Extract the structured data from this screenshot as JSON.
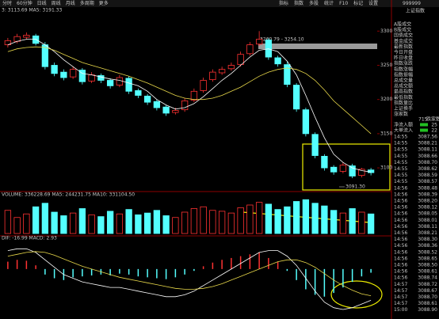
{
  "toolbar": {
    "left": [
      "分时",
      "60分钟",
      "日线",
      "周线",
      "月线",
      "多周期",
      "更多"
    ],
    "right": [
      "指标",
      "指数",
      "多股",
      "统计",
      "F10",
      "标记",
      "设置"
    ]
  },
  "side_panel": {
    "title": "上证指数",
    "code": "999999",
    "items": [
      "A股成交",
      "B股成交",
      "国债成交",
      "基金成交",
      "最新指数",
      "今日开盘",
      "昨日收盘",
      "指数涨跌",
      "指数涨幅",
      "指数振幅",
      "总成交量",
      "总成交额",
      "最高指数",
      "最低指数",
      "指数量比",
      "上证换手",
      "涨家数"
    ],
    "breadth": {
      "up": "715",
      "label": "跌家数"
    },
    "flows": [
      [
        "净流入额",
        "25"
      ],
      [
        "大单流入",
        "22"
      ]
    ],
    "ticks": [
      [
        "14:55",
        "3087.56"
      ],
      [
        "14:55",
        "3088.21"
      ],
      [
        "14:55",
        "3088.11"
      ],
      [
        "14:55",
        "3088.66"
      ],
      [
        "14:55",
        "3088.70"
      ],
      [
        "14:55",
        "3088.62"
      ],
      [
        "14:55",
        "3088.59"
      ],
      [
        "14:55",
        "3088.57"
      ],
      [
        "14:56",
        "3088.48"
      ],
      [
        "14:56",
        "3088.39"
      ],
      [
        "14:56",
        "3088.20"
      ],
      [
        "14:56",
        "3088.12"
      ],
      [
        "14:56",
        "3088.05"
      ],
      [
        "14:56",
        "3088.01"
      ],
      [
        "14:56",
        "3088.11"
      ],
      [
        "14:56",
        "3088.21"
      ],
      [
        "14:56",
        "3088.30"
      ],
      [
        "14:56",
        "3088.36"
      ],
      [
        "14:56",
        "3088.52"
      ],
      [
        "14:56",
        "3088.65"
      ],
      [
        "14:56",
        "3088.50"
      ],
      [
        "14:56",
        "3088.61"
      ],
      [
        "14:56",
        "3088.74"
      ],
      [
        "14:57",
        "3088.72"
      ],
      [
        "14:57",
        "3088.67"
      ],
      [
        "14:57",
        "3088.70"
      ],
      [
        "14:57",
        "3088.61"
      ],
      [
        "15:00",
        "3088.90"
      ]
    ]
  },
  "chart_data": [
    {
      "type": "candlestick",
      "header": "3: 3113.69  MA5: 3191.33",
      "up_color": "#ff3232",
      "down_color": "#54ffff",
      "open": [
        3280,
        3285,
        3291,
        3293,
        3280,
        3250,
        3240,
        3233,
        3243,
        3227,
        3235,
        3228,
        3221,
        3231,
        3213,
        3205,
        3197,
        3189,
        3181,
        3185,
        3199,
        3213,
        3229,
        3239,
        3245,
        3251,
        3267,
        3281,
        3287,
        3261,
        3251,
        3221,
        3185,
        3149,
        3117,
        3101,
        3095,
        3103,
        3089,
        3097
      ],
      "high": [
        3290,
        3296,
        3298,
        3296,
        3284,
        3254,
        3244,
        3248,
        3246,
        3240,
        3238,
        3231,
        3236,
        3234,
        3216,
        3208,
        3200,
        3192,
        3188,
        3202,
        3216,
        3232,
        3244,
        3248,
        3254,
        3270,
        3284,
        3300,
        3290,
        3264,
        3255,
        3224,
        3188,
        3152,
        3120,
        3104,
        3108,
        3106,
        3100,
        3100
      ],
      "low": [
        3276,
        3282,
        3288,
        3279,
        3244,
        3234,
        3228,
        3230,
        3222,
        3224,
        3224,
        3216,
        3218,
        3208,
        3202,
        3192,
        3184,
        3176,
        3178,
        3182,
        3196,
        3210,
        3226,
        3236,
        3242,
        3248,
        3264,
        3278,
        3258,
        3248,
        3218,
        3182,
        3146,
        3114,
        3096,
        3090,
        3092,
        3085,
        3086,
        3089
      ],
      "close": [
        3286,
        3292,
        3294,
        3282,
        3248,
        3238,
        3232,
        3244,
        3226,
        3236,
        3228,
        3220,
        3232,
        3212,
        3206,
        3196,
        3188,
        3180,
        3184,
        3198,
        3212,
        3228,
        3240,
        3244,
        3250,
        3266,
        3280,
        3288,
        3262,
        3252,
        3222,
        3186,
        3150,
        3118,
        3100,
        3094,
        3104,
        3088,
        3098,
        3093
      ],
      "ma": [
        {
          "color": "#ffffff",
          "values": [
            3280,
            3285,
            3288,
            3288,
            3280,
            3270,
            3258,
            3248,
            3238,
            3236,
            3233,
            3230,
            3228,
            3224,
            3220,
            3212,
            3200,
            3192,
            3186,
            3188,
            3194,
            3204,
            3216,
            3228,
            3238,
            3250,
            3262,
            3272,
            3274,
            3270,
            3256,
            3236,
            3206,
            3174,
            3144,
            3120,
            3108,
            3100,
            3096,
            3094
          ]
        },
        {
          "color": "#e8d84a",
          "values": [
            3270,
            3274,
            3276,
            3277,
            3276,
            3272,
            3266,
            3260,
            3254,
            3250,
            3246,
            3242,
            3238,
            3234,
            3229,
            3224,
            3218,
            3212,
            3206,
            3202,
            3200,
            3200,
            3202,
            3206,
            3212,
            3218,
            3226,
            3234,
            3240,
            3244,
            3246,
            3244,
            3238,
            3228,
            3214,
            3198,
            3186,
            3174,
            3162,
            3150
          ]
        }
      ],
      "band_label": "3260.79 - 3254.10",
      "low_label": "3091.30",
      "ylim": [
        3070,
        3320
      ],
      "yticks": [
        3100,
        3150,
        3200,
        3250,
        3300
      ]
    },
    {
      "type": "bar",
      "header": "VOLUME: 336228.69  MA5: 244231.75  MA10: 331104.50",
      "values": [
        260000,
        180000,
        220000,
        300000,
        340000,
        240000,
        200000,
        230000,
        280000,
        210000,
        190000,
        250000,
        220000,
        270000,
        210000,
        230000,
        260000,
        200000,
        180000,
        240000,
        280000,
        300000,
        260000,
        250000,
        230000,
        290000,
        320000,
        350000,
        330000,
        270000,
        300000,
        360000,
        380000,
        340000,
        310000,
        260000,
        230000,
        280000,
        240000,
        220000
      ],
      "ylim": [
        0,
        400000
      ]
    },
    {
      "type": "macd",
      "header": "DIF: -16.99  MACD: 2.93",
      "up_color": "#ff3232",
      "down_color": "#54ffff",
      "histogram": [
        8,
        10,
        9,
        4,
        -6,
        -10,
        -12,
        -9,
        -8,
        -7,
        -6,
        -7,
        -5,
        -6,
        -8,
        -9,
        -10,
        -11,
        -9,
        -6,
        -2,
        3,
        7,
        10,
        12,
        14,
        16,
        18,
        12,
        8,
        -2,
        -12,
        -22,
        -28,
        -30,
        -26,
        -20,
        -14,
        -8,
        -4
      ],
      "series": [
        {
          "color": "#ffffff",
          "values": [
            20,
            22,
            22,
            18,
            10,
            2,
            -6,
            -10,
            -14,
            -16,
            -18,
            -20,
            -20,
            -22,
            -24,
            -26,
            -28,
            -30,
            -30,
            -28,
            -24,
            -18,
            -12,
            -6,
            0,
            6,
            12,
            18,
            20,
            20,
            14,
            4,
            -10,
            -24,
            -36,
            -42,
            -44,
            -42,
            -38,
            -34
          ]
        },
        {
          "color": "#e8d84a",
          "values": [
            14,
            16,
            18,
            19,
            18,
            15,
            11,
            7,
            3,
            0,
            -3,
            -6,
            -9,
            -11,
            -13,
            -15,
            -17,
            -19,
            -21,
            -22,
            -22,
            -21,
            -19,
            -16,
            -12,
            -8,
            -4,
            0,
            4,
            8,
            10,
            10,
            7,
            2,
            -5,
            -12,
            -18,
            -23,
            -27,
            -29
          ]
        }
      ],
      "ylim": [
        -50,
        30
      ]
    }
  ]
}
